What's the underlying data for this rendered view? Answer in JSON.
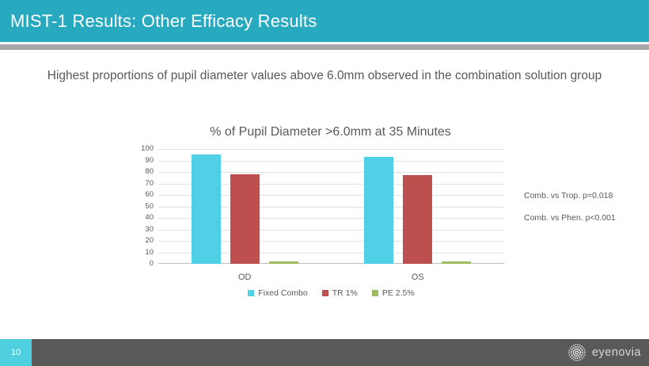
{
  "header": {
    "title": "MIST-1 Results: Other Efficacy Results"
  },
  "subtitle": "Highest proportions of pupil diameter values above 6.0mm observed in the combination solution group",
  "chart_data": {
    "type": "bar",
    "title": "% of Pupil Diameter >6.0mm at 35 Minutes",
    "categories": [
      "OD",
      "OS"
    ],
    "series": [
      {
        "name": "Fixed Combo",
        "color": "#4FD0E6",
        "values": [
          95,
          93
        ]
      },
      {
        "name": "TR 1%",
        "color": "#BE4F4F",
        "values": [
          78,
          77
        ]
      },
      {
        "name": "PE 2.5%",
        "color": "#9DBB61",
        "values": [
          2,
          2
        ]
      }
    ],
    "xlabel": "",
    "ylabel": "",
    "ylim": [
      0,
      100
    ],
    "yticks": [
      0,
      10,
      20,
      30,
      40,
      50,
      60,
      70,
      80,
      90,
      100
    ],
    "grid": true,
    "legend_position": "bottom"
  },
  "annotations": [
    "Comb. vs Trop. p=0.018",
    "Comb. vs Phen. p<0.001"
  ],
  "footer": {
    "page_number": "10",
    "logo_text": "eyenovia"
  },
  "colors": {
    "header_teal": "#27AAC0",
    "separator_gray": "#A6A6A6",
    "footer_gray": "#595959",
    "page_box_cyan": "#4FD0E0",
    "text_gray": "#595959",
    "gridline_gray": "#E2E2E2"
  }
}
